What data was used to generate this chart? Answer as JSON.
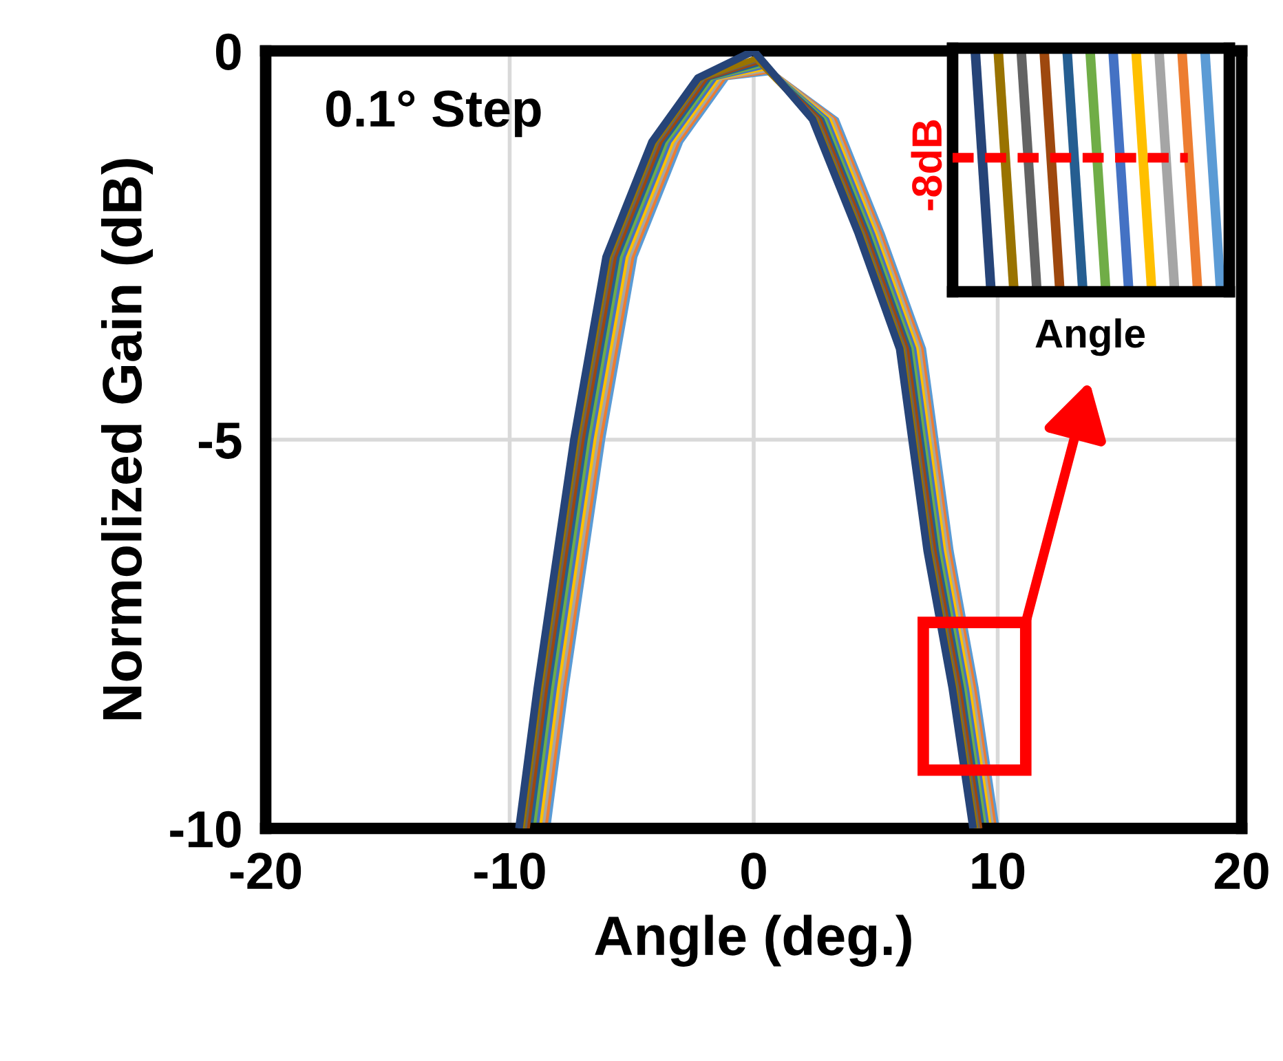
{
  "chart_data": {
    "type": "line",
    "xlabel": "Angle (deg.)",
    "ylabel": "Normolized Gain (dB)",
    "xlim": [
      -20,
      20
    ],
    "ylim": [
      -10,
      0
    ],
    "xticks": [
      -20,
      -10,
      0,
      10,
      20
    ],
    "yticks": [
      -10,
      -5,
      0
    ],
    "grid": true,
    "annotations": [
      "0.1° Step",
      "-8dB",
      "Angle"
    ],
    "series": [
      {
        "color": "#264478",
        "x": [
          -9.62,
          -8.87,
          -7.37,
          -6.05,
          -4.17,
          -2.29,
          0,
          2.41,
          4.29,
          5.98,
          7.11,
          8.14,
          8.99
        ],
        "values": [
          -10,
          -8.2,
          -5,
          -2.65,
          -1.17,
          -0.35,
          0,
          -0.88,
          -2.35,
          -3.83,
          -6.43,
          -8.2,
          -10
        ]
      },
      {
        "color": "#997300",
        "x": [
          -9.5,
          -8.75,
          -7.25,
          -5.93,
          -4.05,
          -2.17,
          0.08,
          2.51,
          4.39,
          6.08,
          7.21,
          8.24,
          9.09
        ],
        "values": [
          -10,
          -8.2,
          -5,
          -2.65,
          -1.17,
          -0.35,
          -0.1,
          -0.88,
          -2.35,
          -3.83,
          -6.43,
          -8.2,
          -10
        ]
      },
      {
        "color": "#636363",
        "x": [
          -9.38,
          -8.63,
          -7.13,
          -5.81,
          -3.93,
          -2.05,
          0.16,
          2.61,
          4.49,
          6.18,
          7.31,
          8.34,
          9.19
        ],
        "values": [
          -10,
          -8.2,
          -5,
          -2.65,
          -1.17,
          -0.35,
          -0.12,
          -0.88,
          -2.35,
          -3.83,
          -6.43,
          -8.2,
          -10
        ]
      },
      {
        "color": "#9e480e",
        "x": [
          -9.26,
          -8.51,
          -7.01,
          -5.69,
          -3.81,
          -1.93,
          0.24,
          2.71,
          4.59,
          6.28,
          7.41,
          8.44,
          9.29
        ],
        "values": [
          -10,
          -8.2,
          -5,
          -2.65,
          -1.17,
          -0.35,
          -0.14,
          -0.88,
          -2.35,
          -3.83,
          -6.43,
          -8.2,
          -10
        ]
      },
      {
        "color": "#255e91",
        "x": [
          -9.14,
          -8.39,
          -6.89,
          -5.57,
          -3.69,
          -1.81,
          0.32,
          2.81,
          4.69,
          6.38,
          7.51,
          8.54,
          9.39
        ],
        "values": [
          -10,
          -8.2,
          -5,
          -2.65,
          -1.17,
          -0.35,
          -0.16,
          -0.88,
          -2.35,
          -3.83,
          -6.43,
          -8.2,
          -10
        ]
      },
      {
        "color": "#70ad47",
        "x": [
          -9.02,
          -8.27,
          -6.77,
          -5.45,
          -3.57,
          -1.69,
          0.4,
          2.91,
          4.79,
          6.48,
          7.61,
          8.64,
          9.49
        ],
        "values": [
          -10,
          -8.2,
          -5,
          -2.65,
          -1.17,
          -0.35,
          -0.18,
          -0.88,
          -2.35,
          -3.83,
          -6.43,
          -8.2,
          -10
        ]
      },
      {
        "color": "#4472c4",
        "x": [
          -8.9,
          -8.15,
          -6.65,
          -5.33,
          -3.45,
          -1.57,
          0.48,
          3.01,
          4.89,
          6.58,
          7.71,
          8.74,
          9.59
        ],
        "values": [
          -10,
          -8.2,
          -5,
          -2.65,
          -1.17,
          -0.35,
          -0.2,
          -0.88,
          -2.35,
          -3.83,
          -6.43,
          -8.2,
          -10
        ]
      },
      {
        "color": "#ffc000",
        "x": [
          -8.78,
          -8.03,
          -6.53,
          -5.21,
          -3.33,
          -1.45,
          0.56,
          3.11,
          4.99,
          6.68,
          7.81,
          8.84,
          9.69
        ],
        "values": [
          -10,
          -8.2,
          -5,
          -2.65,
          -1.17,
          -0.35,
          -0.22,
          -0.88,
          -2.35,
          -3.83,
          -6.43,
          -8.2,
          -10
        ]
      },
      {
        "color": "#a5a5a5",
        "x": [
          -8.66,
          -7.91,
          -6.41,
          -5.09,
          -3.21,
          -1.33,
          0.64,
          3.21,
          5.09,
          6.78,
          7.91,
          8.94,
          9.79
        ],
        "values": [
          -10,
          -8.2,
          -5,
          -2.65,
          -1.17,
          -0.35,
          -0.24,
          -0.88,
          -2.35,
          -3.83,
          -6.43,
          -8.2,
          -10
        ]
      },
      {
        "color": "#ed7d31",
        "x": [
          -8.54,
          -7.79,
          -6.29,
          -4.97,
          -3.09,
          -1.21,
          0.72,
          3.31,
          5.19,
          6.88,
          8.01,
          9.04,
          9.89
        ],
        "values": [
          -10,
          -8.2,
          -5,
          -2.65,
          -1.17,
          -0.35,
          -0.26,
          -0.88,
          -2.35,
          -3.83,
          -6.43,
          -8.2,
          -10
        ]
      },
      {
        "color": "#5b9bd5",
        "x": [
          -8.42,
          -7.67,
          -6.17,
          -4.85,
          -2.97,
          -1.09,
          0.8,
          3.41,
          5.29,
          6.98,
          8.11,
          9.14,
          9.99
        ],
        "values": [
          -10,
          -8.2,
          -5,
          -2.65,
          -1.17,
          -0.35,
          -0.28,
          -0.88,
          -2.35,
          -3.83,
          -6.43,
          -8.2,
          -10
        ]
      }
    ]
  }
}
